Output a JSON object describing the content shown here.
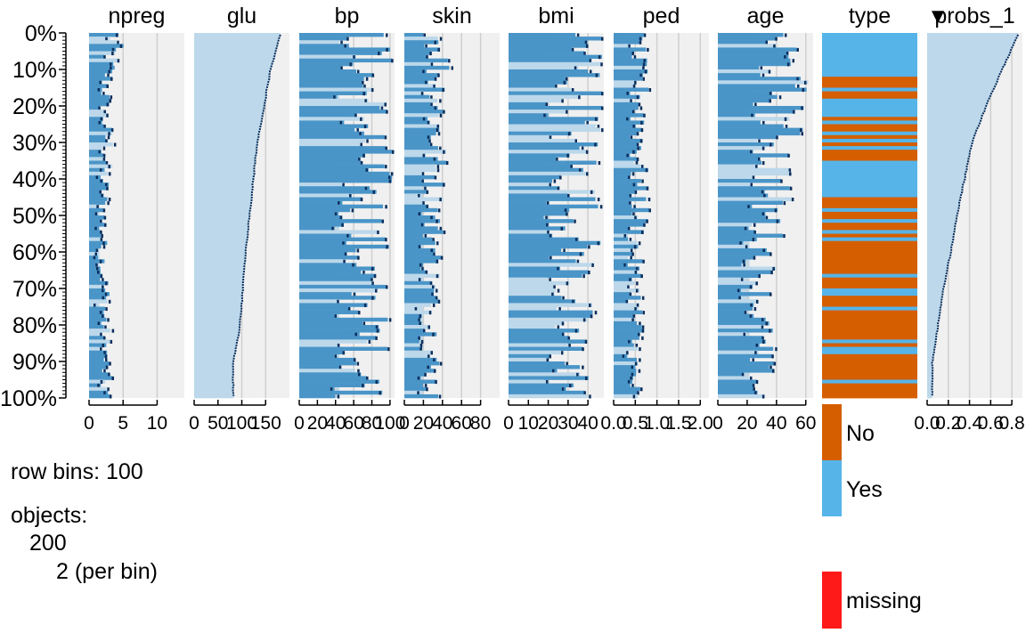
{
  "chart_data": {
    "type": "tableplot",
    "sort_column": "probs_1",
    "sort_marker": "▼",
    "row_labels": [
      "0%",
      "10%",
      "20%",
      "30%",
      "40%",
      "50%",
      "60%",
      "70%",
      "80%",
      "90%",
      "100%"
    ],
    "columns": [
      {
        "name": "npreg",
        "kind": "numeric",
        "range": [
          0,
          14
        ],
        "ticks": [
          "0",
          "5",
          "10"
        ],
        "tick_values": [
          0,
          5,
          10
        ]
      },
      {
        "name": "glu",
        "kind": "numeric",
        "range": [
          0,
          200
        ],
        "ticks": [
          "0",
          "50",
          "100",
          "150"
        ],
        "tick_values": [
          0,
          50,
          100,
          150
        ]
      },
      {
        "name": "bp",
        "kind": "numeric",
        "range": [
          0,
          105
        ],
        "ticks": [
          "0",
          "20",
          "40",
          "60",
          "80",
          "100"
        ],
        "tick_values": [
          0,
          20,
          40,
          60,
          80,
          100
        ]
      },
      {
        "name": "skin",
        "kind": "numeric",
        "range": [
          0,
          100
        ],
        "ticks": [
          "0",
          "20",
          "40",
          "60",
          "80"
        ],
        "tick_values": [
          0,
          20,
          40,
          60,
          80
        ]
      },
      {
        "name": "bmi",
        "kind": "numeric",
        "range": [
          0,
          48
        ],
        "ticks": [
          "0",
          "10",
          "20",
          "30",
          "40"
        ],
        "tick_values": [
          0,
          10,
          20,
          30,
          40
        ]
      },
      {
        "name": "ped",
        "kind": "numeric",
        "range": [
          0,
          2.2
        ],
        "ticks": [
          "0.0",
          "0.5",
          "1.0",
          "1.5",
          "2.0"
        ],
        "tick_values": [
          0,
          0.5,
          1.0,
          1.5,
          2.0
        ]
      },
      {
        "name": "age",
        "kind": "numeric",
        "range": [
          0,
          65
        ],
        "ticks": [
          "0",
          "20",
          "40",
          "60"
        ],
        "tick_values": [
          0,
          20,
          40,
          60
        ]
      },
      {
        "name": "type",
        "kind": "categorical",
        "categories": [
          "No",
          "Yes"
        ]
      },
      {
        "name": "probs_1",
        "kind": "numeric",
        "range": [
          0,
          0.9
        ],
        "ticks": [
          "0.0",
          "0.2",
          "0.4",
          "0.6",
          "0.8"
        ],
        "tick_values": [
          0,
          0.2,
          0.4,
          0.6,
          0.8
        ]
      }
    ],
    "bins": 100,
    "approx_means": {
      "npreg": [
        3.8,
        2.8,
        2.2,
        2.7,
        2.2,
        1.9,
        1.9,
        2.3,
        2.2,
        2.4
      ],
      "glu": [
        180,
        160,
        146,
        132,
        124,
        116,
        108,
        102,
        96,
        82
      ],
      "bp": [
        73,
        72,
        72,
        74,
        72,
        70,
        70,
        69,
        69,
        70
      ],
      "skin": [
        36,
        36,
        35,
        33,
        31,
        30,
        30,
        27,
        28,
        28
      ],
      "bmi": [
        38,
        37,
        35,
        33,
        34,
        32,
        33,
        31,
        29,
        30
      ],
      "ped": [
        0.5,
        0.55,
        0.6,
        0.6,
        0.55,
        0.6,
        0.45,
        0.5,
        0.5,
        0.45
      ],
      "age": [
        40,
        44,
        42,
        40,
        38,
        33,
        30,
        27,
        27,
        27
      ],
      "probs_1": [
        0.86,
        0.7,
        0.55,
        0.42,
        0.35,
        0.28,
        0.22,
        0.15,
        0.1,
        0.05
      ]
    },
    "type_yes_bins": [
      0,
      1,
      2,
      3,
      4,
      5,
      6,
      7,
      8,
      9,
      10,
      11,
      15,
      18,
      19,
      20,
      21,
      22,
      24,
      27,
      29,
      31,
      35,
      36,
      37,
      38,
      39,
      40,
      41,
      42,
      43,
      44,
      48,
      51,
      54,
      56,
      66,
      70,
      71,
      75,
      84,
      86,
      87,
      95
    ],
    "legend": [
      {
        "label": "No",
        "color": "#d55e00"
      },
      {
        "label": "Yes",
        "color": "#56b4e9"
      },
      {
        "label": "missing",
        "color": "#ff1a1a"
      }
    ],
    "colors": {
      "mean_fill": "#4a95c8",
      "mean_fill_light": "#bcd8ea",
      "line": "#0a2e5c",
      "panel_bg": "#f0f0f0",
      "band": "#bcd8ea",
      "grid": "#cfcfcf"
    }
  },
  "info": {
    "row_bins_label": "row bins:",
    "row_bins_value": "100",
    "objects_label": "objects:",
    "objects_total": "200",
    "objects_per_bin": "2 (per bin)"
  }
}
